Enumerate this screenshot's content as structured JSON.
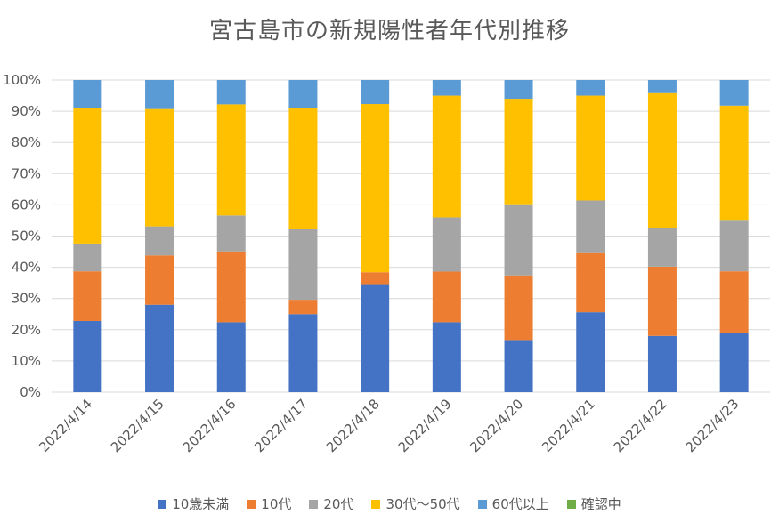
{
  "chart_data": {
    "type": "bar",
    "stacked": true,
    "percent": true,
    "title": "宮古島市の新規陽性者年代別推移",
    "categories": [
      "2022/4/14",
      "2022/4/15",
      "2022/4/16",
      "2022/4/17",
      "2022/4/18",
      "2022/4/19",
      "2022/4/20",
      "2022/4/21",
      "2022/4/22",
      "2022/4/23"
    ],
    "y_ticks": [
      "0%",
      "10%",
      "20%",
      "30%",
      "40%",
      "50%",
      "60%",
      "70%",
      "80%",
      "90%",
      "100%"
    ],
    "ylim": [
      0,
      100
    ],
    "grid": true,
    "legend_position": "bottom",
    "series": [
      {
        "name": "10歳未満",
        "color": "#4472C4",
        "values": [
          22.8,
          28.0,
          22.4,
          25.0,
          34.6,
          22.4,
          16.7,
          25.6,
          18.0,
          18.8
        ]
      },
      {
        "name": "10代",
        "color": "#ED7D31",
        "values": [
          15.9,
          15.8,
          22.7,
          4.6,
          3.8,
          16.2,
          20.7,
          19.2,
          22.2,
          19.9
        ]
      },
      {
        "name": "20代",
        "color": "#A5A5A5",
        "values": [
          8.9,
          9.3,
          11.5,
          22.8,
          0.0,
          17.4,
          22.8,
          16.6,
          12.5,
          16.5
        ]
      },
      {
        "name": "30代～50代",
        "color": "#FFC000",
        "values": [
          43.3,
          37.6,
          35.6,
          38.6,
          53.9,
          39.0,
          33.8,
          33.6,
          43.1,
          36.6
        ]
      },
      {
        "name": "60代以上",
        "color": "#5B9BD5",
        "values": [
          9.1,
          9.3,
          7.8,
          9.0,
          7.7,
          5.0,
          6.0,
          5.0,
          4.2,
          8.2
        ]
      },
      {
        "name": "確認中",
        "color": "#70AD47",
        "values": [
          0,
          0,
          0,
          0,
          0,
          0,
          0,
          0,
          0,
          0
        ]
      }
    ]
  }
}
